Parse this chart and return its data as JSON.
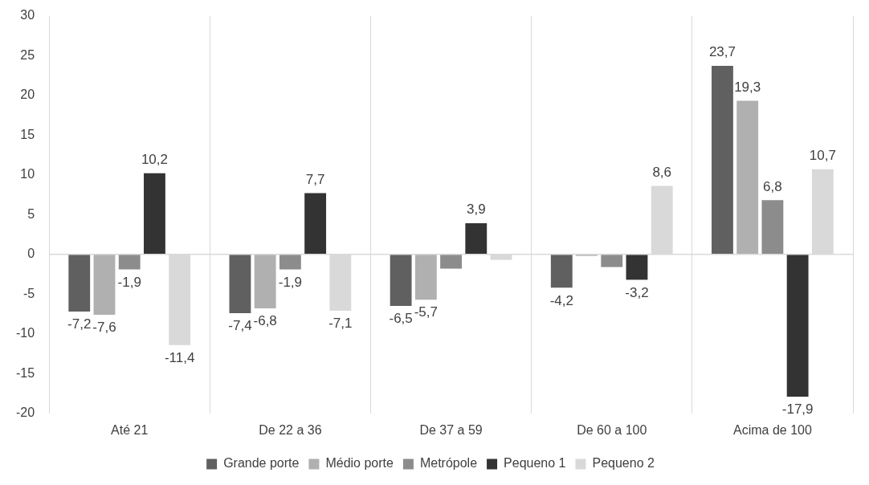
{
  "chart_data": {
    "type": "bar",
    "categories": [
      "Até 21",
      "De 22 a 36",
      "De 37 a 59",
      "De 60 a 100",
      "Acima de 100"
    ],
    "series": [
      {
        "name": "Grande porte",
        "color": "#606060",
        "values": [
          -7.2,
          -7.4,
          -6.5,
          -4.2,
          23.7
        ],
        "value_labels": [
          "-7,2",
          "-7,4",
          "-6,5",
          "-4,2",
          "23,7"
        ]
      },
      {
        "name": "Médio porte",
        "color": "#b0b0b0",
        "values": [
          -7.6,
          -6.8,
          -5.7,
          -0.2,
          19.3
        ],
        "value_labels": [
          "-7,6",
          "-6,8",
          "-5,7",
          null,
          "19,3"
        ]
      },
      {
        "name": "Metrópole",
        "color": "#8c8c8c",
        "values": [
          -1.9,
          -1.9,
          -1.8,
          -1.6,
          6.8
        ],
        "value_labels": [
          "-1,9",
          "-1,9",
          null,
          null,
          "6,8"
        ]
      },
      {
        "name": "Pequeno 1",
        "color": "#333333",
        "values": [
          10.2,
          7.7,
          3.9,
          -3.2,
          -17.9
        ],
        "value_labels": [
          "10,2",
          "7,7",
          "3,9",
          "-3,2",
          "-17,9"
        ]
      },
      {
        "name": "Pequeno 2",
        "color": "#d9d9d9",
        "values": [
          -11.4,
          -7.1,
          -0.7,
          8.6,
          10.7
        ],
        "value_labels": [
          "-11,4",
          "-7,1",
          null,
          "8,6",
          "10,7"
        ]
      }
    ],
    "ylim": [
      -20,
      30
    ],
    "yticks": [
      -20,
      -15,
      -10,
      -5,
      0,
      5,
      10,
      15,
      20,
      25,
      30
    ],
    "grid": "x",
    "legend": "bottom"
  }
}
